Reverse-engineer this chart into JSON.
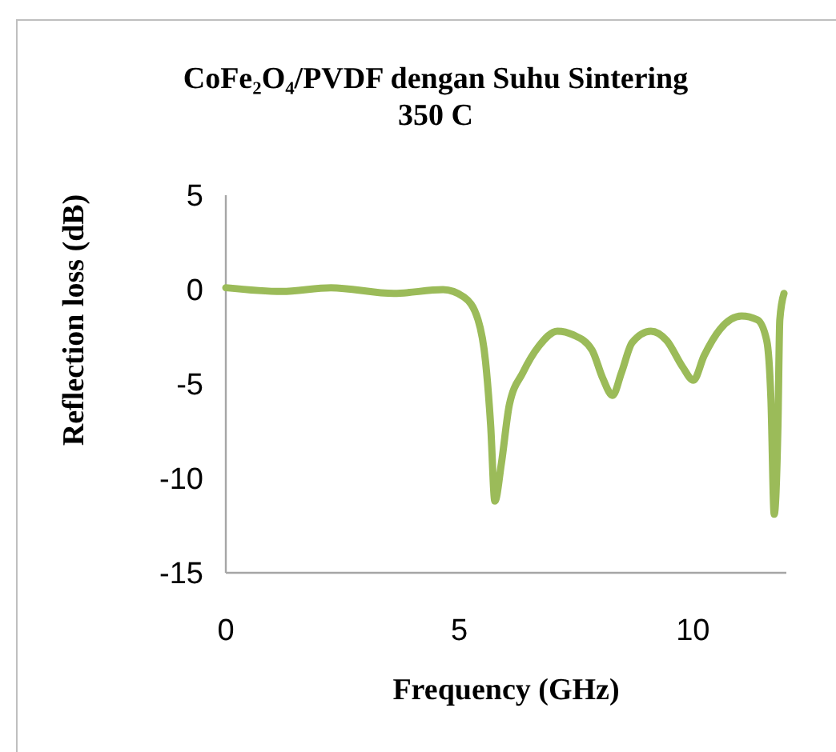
{
  "chart_data": {
    "type": "line",
    "title": "CoFe₂O₄/PVDF dengan Suhu Sintering 350 C",
    "xlabel": "Frequency (GHz)",
    "ylabel": "Reflection loss (dB)",
    "xlim": [
      0,
      12
    ],
    "xticks": [
      0,
      5,
      10
    ],
    "ylim": [
      -15,
      5
    ],
    "yticks": [
      -15,
      -10,
      -5,
      0,
      5
    ],
    "grid": false,
    "marker": "none",
    "line_style": "solid",
    "series": [
      {
        "color": "#9bbb59",
        "x": [
          0,
          1.2,
          2.25,
          3.6,
          4.65,
          5.1,
          5.4,
          5.56,
          5.67,
          5.76,
          5.9,
          6.07,
          6.36,
          6.7,
          7.1,
          7.44,
          7.84,
          8.07,
          8.28,
          8.47,
          8.7,
          9.1,
          9.44,
          9.78,
          10.01,
          10.24,
          10.58,
          11.04,
          11.38,
          11.58,
          11.67,
          11.74,
          11.82,
          11.86,
          11.95
        ],
        "values": [
          0.1,
          -0.1,
          0.1,
          -0.2,
          0,
          -0.4,
          -1.6,
          -3.8,
          -7.2,
          -11.2,
          -9.2,
          -6.1,
          -4.4,
          -3.0,
          -2.2,
          -2.4,
          -3.2,
          -4.7,
          -5.6,
          -4.4,
          -2.8,
          -2.2,
          -2.7,
          -4.1,
          -4.8,
          -3.5,
          -2.1,
          -1.4,
          -1.6,
          -2.7,
          -5.8,
          -11.9,
          -7.2,
          -1.6,
          -0.2
        ]
      }
    ]
  }
}
